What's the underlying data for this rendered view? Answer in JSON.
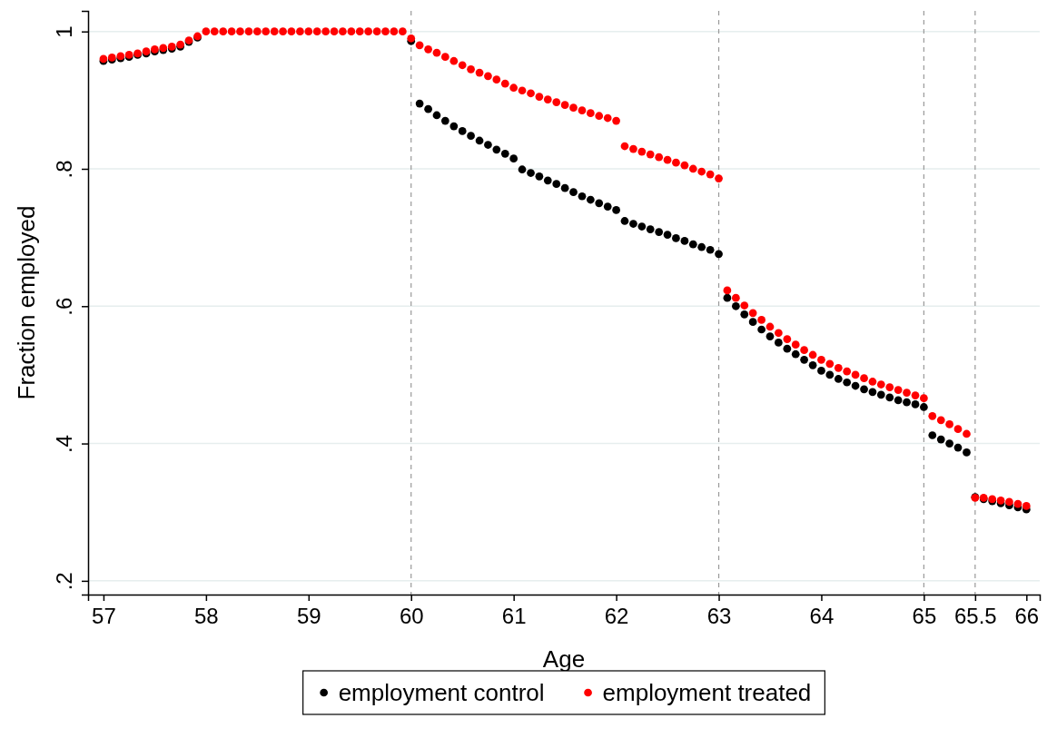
{
  "chart_data": {
    "type": "scatter",
    "xlabel": "Age",
    "ylabel": "Fraction employed",
    "x": [
      57,
      57.083,
      57.167,
      57.25,
      57.333,
      57.417,
      57.5,
      57.583,
      57.667,
      57.75,
      57.833,
      57.917,
      58,
      58.083,
      58.167,
      58.25,
      58.333,
      58.417,
      58.5,
      58.583,
      58.667,
      58.75,
      58.833,
      58.917,
      59,
      59.083,
      59.167,
      59.25,
      59.333,
      59.417,
      59.5,
      59.583,
      59.667,
      59.75,
      59.833,
      59.917,
      60,
      60.083,
      60.167,
      60.25,
      60.333,
      60.417,
      60.5,
      60.583,
      60.667,
      60.75,
      60.833,
      60.917,
      61,
      61.083,
      61.167,
      61.25,
      61.333,
      61.417,
      61.5,
      61.583,
      61.667,
      61.75,
      61.833,
      61.917,
      62,
      62.083,
      62.167,
      62.25,
      62.333,
      62.417,
      62.5,
      62.583,
      62.667,
      62.75,
      62.833,
      62.917,
      63,
      63.083,
      63.167,
      63.25,
      63.333,
      63.417,
      63.5,
      63.583,
      63.667,
      63.75,
      63.833,
      63.917,
      64,
      64.083,
      64.167,
      64.25,
      64.333,
      64.417,
      64.5,
      64.583,
      64.667,
      64.75,
      64.833,
      64.917,
      65,
      65.083,
      65.167,
      65.25,
      65.333,
      65.417,
      65.5,
      65.583,
      65.667,
      65.75,
      65.833,
      65.917,
      66
    ],
    "series": [
      {
        "name": "employment control",
        "color": "#000000",
        "values": [
          0.957,
          0.959,
          0.961,
          0.963,
          0.966,
          0.968,
          0.971,
          0.973,
          0.975,
          0.978,
          0.985,
          0.991,
          null,
          null,
          null,
          null,
          null,
          null,
          null,
          null,
          null,
          null,
          null,
          null,
          null,
          null,
          null,
          null,
          null,
          null,
          null,
          null,
          null,
          null,
          null,
          null,
          0.986,
          0.895,
          0.887,
          0.878,
          0.87,
          0.862,
          0.855,
          0.848,
          0.841,
          0.835,
          0.828,
          0.822,
          0.815,
          0.799,
          0.794,
          0.789,
          0.783,
          0.778,
          0.772,
          0.766,
          0.76,
          0.755,
          0.75,
          0.745,
          0.74,
          0.724,
          0.72,
          0.716,
          0.712,
          0.708,
          0.704,
          0.699,
          0.695,
          0.69,
          0.686,
          0.682,
          0.676,
          0.612,
          0.6,
          0.588,
          0.577,
          0.566,
          0.556,
          0.547,
          0.538,
          0.53,
          0.522,
          0.514,
          0.506,
          0.5,
          0.494,
          0.489,
          0.484,
          0.479,
          0.475,
          0.471,
          0.467,
          0.463,
          0.46,
          0.457,
          0.453,
          0.412,
          0.406,
          0.4,
          0.394,
          0.387,
          0.322,
          0.319,
          0.316,
          0.313,
          0.31,
          0.307,
          0.304
        ]
      },
      {
        "name": "employment treated",
        "color": "#ff0000",
        "values": [
          0.96,
          0.962,
          0.964,
          0.966,
          0.968,
          0.971,
          0.974,
          0.976,
          0.978,
          0.981,
          0.987,
          0.993,
          1,
          1,
          1,
          1,
          1,
          1,
          1,
          1,
          1,
          1,
          1,
          1,
          1,
          1,
          1,
          1,
          1,
          1,
          1,
          1,
          1,
          1,
          1,
          1,
          0.99,
          0.98,
          0.974,
          0.969,
          0.963,
          0.957,
          0.951,
          0.945,
          0.94,
          0.935,
          0.93,
          0.924,
          0.918,
          0.914,
          0.91,
          0.905,
          0.901,
          0.897,
          0.893,
          0.889,
          0.885,
          0.881,
          0.877,
          0.874,
          0.87,
          0.833,
          0.829,
          0.825,
          0.821,
          0.817,
          0.813,
          0.809,
          0.805,
          0.8,
          0.796,
          0.792,
          0.786,
          0.623,
          0.612,
          0.601,
          0.59,
          0.58,
          0.57,
          0.561,
          0.552,
          0.544,
          0.536,
          0.529,
          0.522,
          0.516,
          0.51,
          0.505,
          0.5,
          0.495,
          0.49,
          0.486,
          0.482,
          0.478,
          0.474,
          0.47,
          0.466,
          0.44,
          0.434,
          0.428,
          0.421,
          0.414,
          0.321,
          0.321,
          0.319,
          0.317,
          0.315,
          0.312,
          0.309
        ]
      }
    ],
    "xlim": [
      56.85,
      66.13
    ],
    "xticks": [
      57,
      58,
      59,
      60,
      61,
      62,
      63,
      64,
      65,
      65.5,
      66
    ],
    "ylim": [
      0.18,
      1.03
    ],
    "yticks": [
      {
        "value": 0.2,
        "label": ".2"
      },
      {
        "value": 0.4,
        "label": ".4"
      },
      {
        "value": 0.6,
        "label": ".6"
      },
      {
        "value": 0.8,
        "label": ".8"
      },
      {
        "value": 1,
        "label": "1"
      }
    ],
    "ref_lines": [
      {
        "axis": "x",
        "value": 60,
        "color": "#999999",
        "line_style": "dashed"
      },
      {
        "axis": "x",
        "value": 63,
        "color": "#999999",
        "line_style": "dashed"
      },
      {
        "axis": "x",
        "value": 65,
        "color": "#999999",
        "line_style": "dashed"
      },
      {
        "axis": "x",
        "value": 65.5,
        "color": "#999999",
        "line_style": "dashed"
      }
    ],
    "grid": "y",
    "legend": "bottom",
    "marker": "circle"
  }
}
